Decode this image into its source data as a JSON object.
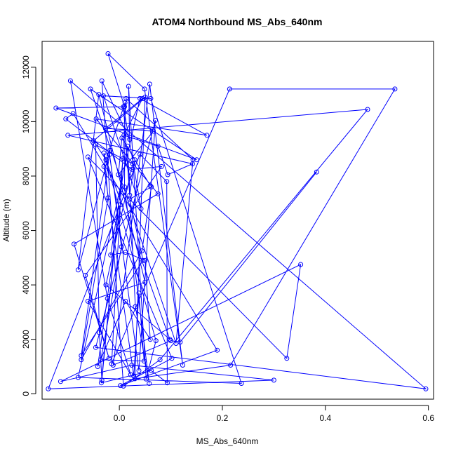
{
  "chart_data": {
    "type": "line",
    "title": "ATOM4 Northbound MS_Abs_640nm",
    "xlabel": "MS_Abs_640nm",
    "ylabel": "Altitude (m)",
    "xlim": [
      -0.15,
      0.61
    ],
    "ylim": [
      -200,
      12950
    ],
    "xticks": [
      0.0,
      0.2,
      0.4,
      0.6
    ],
    "xtick_labels": [
      "0.0",
      "0.2",
      "0.4",
      "0.6"
    ],
    "yticks": [
      0,
      2000,
      4000,
      6000,
      8000,
      10000,
      12000
    ],
    "ytick_labels": [
      "0",
      "2000",
      "4000",
      "6000",
      "8000",
      "10000",
      "12000"
    ],
    "grid": false,
    "series": [
      {
        "color": "#0000ff",
        "marker": "open-circle",
        "x": [
          0.383,
          0.118,
          0.1,
          -0.012,
          0.059,
          0.123,
          0.049,
          -0.022,
          0.01,
          -0.123,
          0.15,
          -0.056,
          0.11,
          0.143,
          0.013,
          -0.015,
          0.214,
          0.535,
          0.216,
          0.03,
          0.05,
          -0.05,
          -0.026,
          0.098,
          -0.026,
          0.026,
          -0.046,
          -0.039,
          -0.034,
          0.007,
          -0.035,
          0.062,
          0.093,
          0.092,
          0.04,
          -0.138,
          0.3,
          0.024,
          -0.114,
          0.352,
          0.325,
          -0.061,
          0.102,
          0.002,
          0.19,
          -0.09,
          -0.104,
          0.024,
          0.082,
          -0.066,
          -0.02,
          -0.088,
          0.075,
          -0.045,
          0.17,
          0.04,
          -0.08,
          0.237,
          0.061,
          -0.031,
          0.042,
          0.008,
          0.02,
          0.03,
          0.06,
          0.005,
          -0.002,
          0.066,
          -0.027,
          0.045,
          0.009,
          0.075,
          0.094,
          0.142,
          -0.1,
          0.482,
          0.079,
          0.008,
          -0.034,
          0.02,
          0.018,
          0.052,
          0.071,
          -0.03,
          -0.022,
          -0.074,
          0.044,
          0.062,
          0.02,
          0.046,
          -0.074,
          -0.018,
          -0.08,
          -0.04,
          0.05,
          -0.061,
          0.022,
          -0.023,
          -0.095,
          0.595,
          -0.046,
          0.07,
          0.038,
          -0.019,
          0.004,
          -0.036,
          0.048,
          0.038,
          0.028,
          -0.03,
          0.011,
          0.01,
          0.058,
          0.031,
          0.016,
          -0.017,
          0.012,
          0.05,
          0.06,
          0.012,
          -0.042,
          0.002
        ],
        "y": [
          8150,
          1900,
          1950,
          1050,
          11380,
          1050,
          11200,
          12500,
          10550,
          10500,
          8600,
          11200,
          1850,
          8600,
          10850,
          1100,
          11200,
          11200,
          1050,
          550,
          10900,
          9300,
          8600,
          2000,
          4000,
          8450,
          9150,
          2250,
          500,
          8650,
          400,
          850,
          400,
          7800,
          8800,
          180,
          500,
          1050,
          450,
          4750,
          1300,
          8700,
          1300,
          300,
          1600,
          10300,
          10100,
          8250,
          8350,
          4350,
          1300,
          5500,
          7350,
          10100,
          9500,
          10850,
          600,
          380,
          10850,
          10950,
          6800,
          10550,
          7300,
          8600,
          7650,
          9400,
          8050,
          9650,
          9750,
          10850,
          9500,
          9100,
          8050,
          8450,
          9500,
          10450,
          1250,
          280,
          11500,
          9350,
          11300,
          540,
          1950,
          8850,
          7200,
          1250,
          5250,
          7600,
          7150,
          4900,
          1400,
          8950,
          4550,
          11000,
          4100,
          3400,
          700,
          3500,
          11500,
          180,
          1700,
          10050,
          850,
          8800,
          5400,
          1250,
          1200,
          3700,
          650,
          8350,
          10700,
          7600,
          380,
          3200,
          9100,
          5100,
          5200,
          4900,
          2000,
          3400,
          1000,
          6950
        ]
      }
    ]
  }
}
